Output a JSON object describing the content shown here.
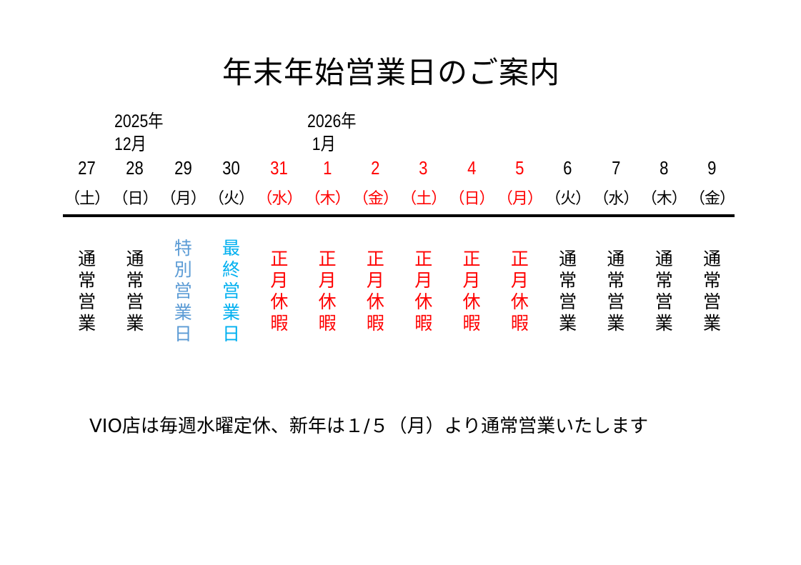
{
  "title": "年末年始営業日のご案内",
  "year_labels": [
    {
      "year": "2025年",
      "month": "12月"
    },
    {
      "year": "2026年",
      "month": "1月"
    }
  ],
  "colors": {
    "normal": "#000000",
    "holiday": "#ff0000",
    "special": "#5b9bd5",
    "last": "#00b0f0"
  },
  "days": [
    {
      "date": "27",
      "weekday": "（土）",
      "status": "通常営業",
      "color": "#000000"
    },
    {
      "date": "28",
      "weekday": "（日）",
      "status": "通常営業",
      "color": "#000000"
    },
    {
      "date": "29",
      "weekday": "（月）",
      "status": "特別営業日",
      "color": "#000000",
      "status_color": "#5b9bd5"
    },
    {
      "date": "30",
      "weekday": "（火）",
      "status": "最終営業日",
      "color": "#000000",
      "status_color": "#00b0f0"
    },
    {
      "date": "31",
      "weekday": "（水）",
      "status": "正月休暇",
      "color": "#ff0000"
    },
    {
      "date": "1",
      "weekday": "（木）",
      "status": "正月休暇",
      "color": "#ff0000"
    },
    {
      "date": "2",
      "weekday": "（金）",
      "status": "正月休暇",
      "color": "#ff0000"
    },
    {
      "date": "3",
      "weekday": "（土）",
      "status": "正月休暇",
      "color": "#ff0000"
    },
    {
      "date": "4",
      "weekday": "（日）",
      "status": "正月休暇",
      "color": "#ff0000"
    },
    {
      "date": "5",
      "weekday": "（月）",
      "status": "正月休暇",
      "color": "#ff0000"
    },
    {
      "date": "6",
      "weekday": "（火）",
      "status": "通常営業",
      "color": "#000000"
    },
    {
      "date": "7",
      "weekday": "（水）",
      "status": "通常営業",
      "color": "#000000"
    },
    {
      "date": "8",
      "weekday": "（木）",
      "status": "通常営業",
      "color": "#000000"
    },
    {
      "date": "9",
      "weekday": "（金）",
      "status": "通常営業",
      "color": "#000000"
    }
  ],
  "note": "VIO店は毎週水曜定休、新年は１/５（月）より通常営業いたします"
}
